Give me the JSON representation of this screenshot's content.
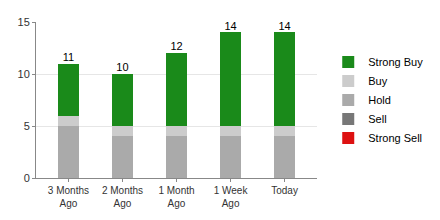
{
  "chart_data": {
    "type": "bar",
    "stacked": true,
    "categories": [
      "3 Months Ago",
      "2 Months Ago",
      "1 Month Ago",
      "1 Week Ago",
      "Today"
    ],
    "series": [
      {
        "name": "Strong Sell",
        "color": "#dd1111",
        "values": [
          0,
          0,
          0,
          0,
          0
        ]
      },
      {
        "name": "Sell",
        "color": "#777777",
        "values": [
          0,
          0,
          0,
          0,
          0
        ]
      },
      {
        "name": "Hold",
        "color": "#aaaaaa",
        "values": [
          5,
          4,
          4,
          4,
          4
        ]
      },
      {
        "name": "Buy",
        "color": "#cccccc",
        "values": [
          1,
          1,
          1,
          1,
          1
        ]
      },
      {
        "name": "Strong Buy",
        "color": "#1a8a1a",
        "values": [
          5,
          5,
          7,
          9,
          9
        ]
      }
    ],
    "totals": [
      11,
      10,
      12,
      14,
      14
    ],
    "ylim": [
      0,
      15
    ],
    "yticks": [
      0,
      5,
      10,
      15
    ],
    "grid": true,
    "legend": "right"
  }
}
